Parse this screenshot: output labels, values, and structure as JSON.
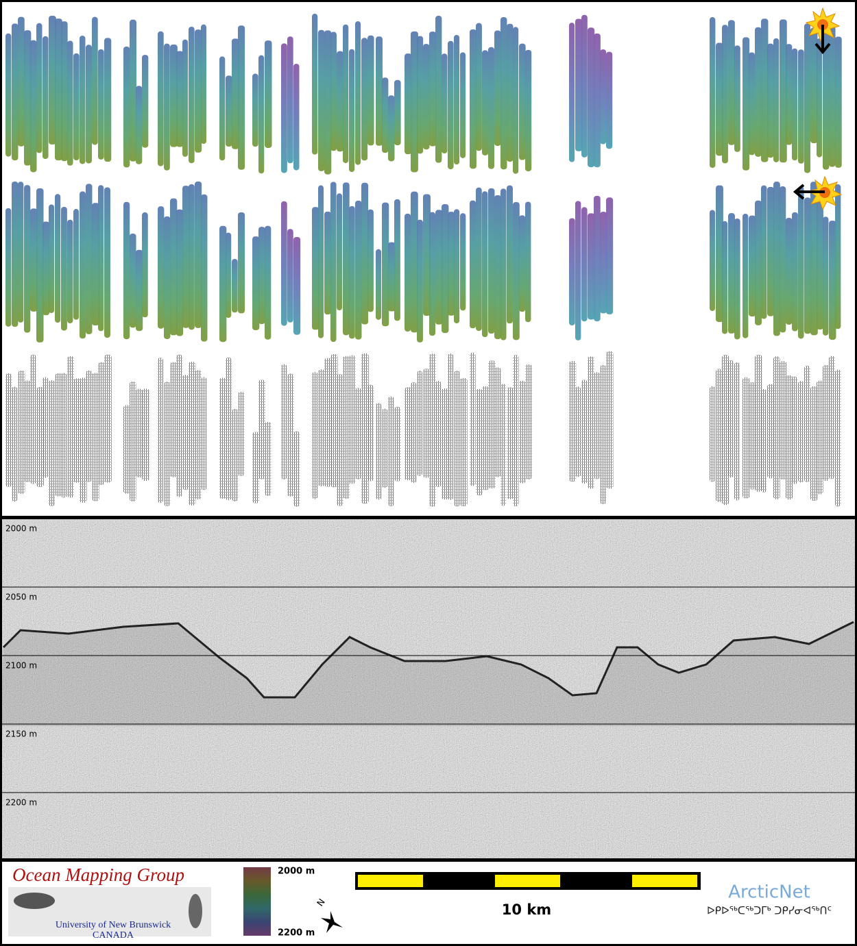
{
  "profile": {
    "depth_labels": [
      "2000 m",
      "2050 m",
      "2100 m",
      "2150 m",
      "2200 m"
    ]
  },
  "footer": {
    "logo": {
      "title": "Ocean Mapping Group",
      "university": "University of New Brunswick",
      "country": "CANADA"
    },
    "colorbar": {
      "top": "2000 m",
      "bottom": "2200 m"
    },
    "north": "N",
    "scale": "10 km",
    "partner": {
      "name": "ArcticNet",
      "syllabics": "ᐅᑭᐅᖅᑕᖅᑐᒥᒃ ᑐᑭᓯᓂᐊᖅᑎᑦ"
    }
  }
}
